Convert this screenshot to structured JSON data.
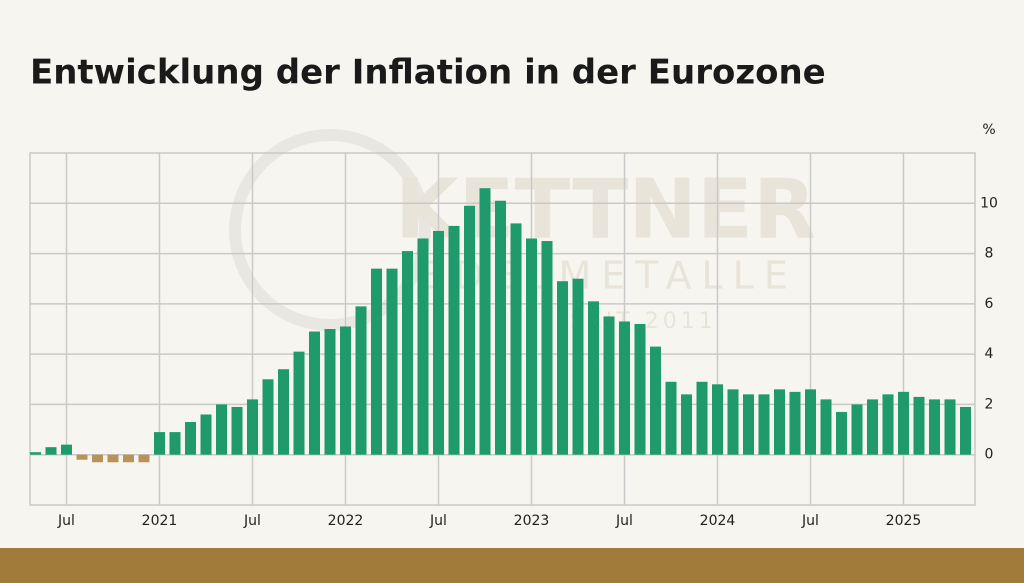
{
  "chart_data": {
    "type": "bar",
    "title": "Entwicklung der Inflation in der Eurozone",
    "y_unit": "%",
    "watermark": [
      "KETTNER",
      "EDELMETALLE",
      "SEIT 2011"
    ],
    "categories": [
      null,
      null,
      "Jul",
      null,
      null,
      null,
      null,
      null,
      "2021",
      null,
      null,
      null,
      null,
      null,
      "Jul",
      null,
      null,
      null,
      null,
      null,
      "2022",
      null,
      null,
      null,
      null,
      null,
      "Jul",
      null,
      null,
      null,
      null,
      null,
      "2023",
      null,
      null,
      null,
      null,
      null,
      "Jul",
      null,
      null,
      null,
      null,
      null,
      "2024",
      null,
      null,
      null,
      null,
      null,
      "Jul",
      null,
      null,
      null,
      null,
      null,
      "2025",
      null,
      null,
      null,
      null
    ],
    "values": [
      0.1,
      0.3,
      0.4,
      -0.2,
      -0.3,
      -0.3,
      -0.3,
      -0.3,
      0.9,
      0.9,
      1.3,
      1.6,
      2.0,
      1.9,
      2.2,
      3.0,
      3.4,
      4.1,
      4.9,
      5.0,
      5.1,
      5.9,
      7.4,
      7.4,
      8.1,
      8.6,
      8.9,
      9.1,
      9.9,
      10.6,
      10.1,
      9.2,
      8.6,
      8.5,
      6.9,
      7.0,
      6.1,
      5.5,
      5.3,
      5.2,
      4.3,
      2.9,
      2.4,
      2.9,
      2.8,
      2.6,
      2.4,
      2.4,
      2.6,
      2.5,
      2.6,
      2.2,
      1.7,
      2.0,
      2.2,
      2.4,
      2.5,
      2.3,
      2.2,
      2.2,
      1.9
    ],
    "color": "#1e9a6c",
    "negative_color": "#b99258",
    "ylim": [
      -2,
      12
    ],
    "yticks": [
      0,
      2,
      4,
      6,
      8,
      10
    ],
    "grid": true
  }
}
